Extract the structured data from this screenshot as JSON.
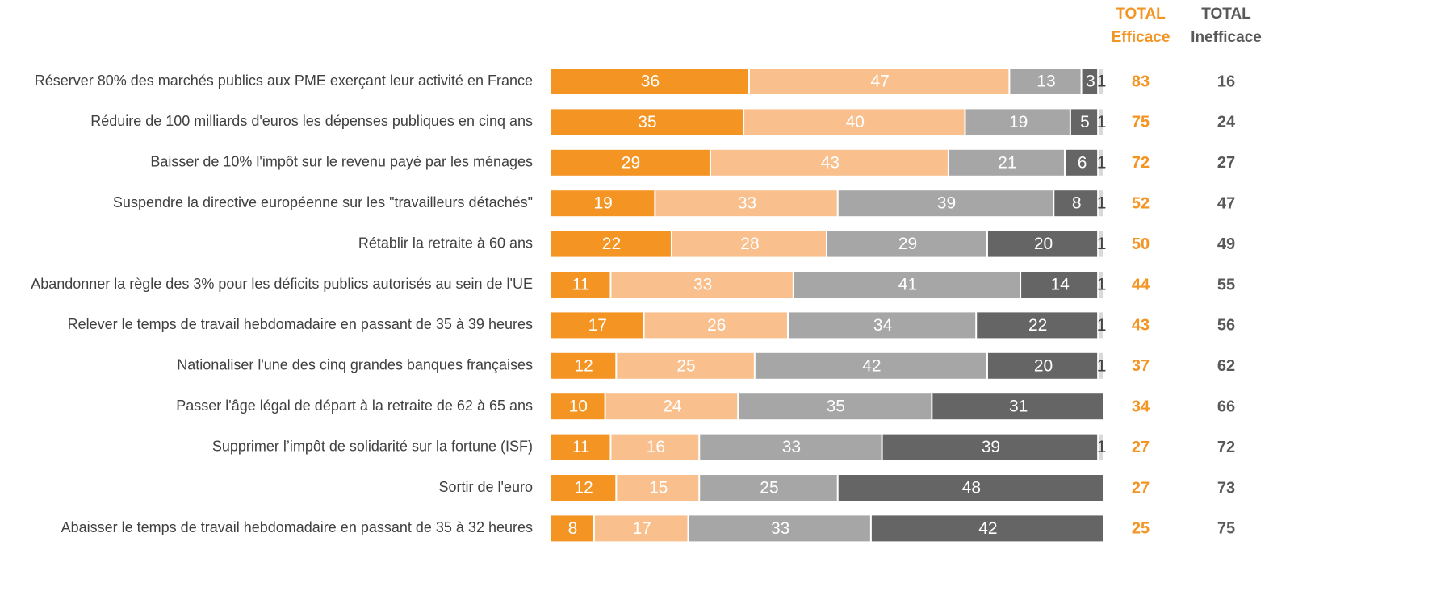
{
  "chart_data": {
    "type": "stacked_bar_horizontal",
    "categories": [
      "Réserver 80% des marchés publics aux PME exerçant leur activité en France",
      "Réduire de 100 milliards d'euros les dépenses publiques en cinq ans",
      "Baisser de 10% l'impôt sur le revenu payé par les ménages",
      "Suspendre la directive européenne sur les \"travailleurs détachés\"",
      "Rétablir la retraite à 60 ans",
      "Abandonner la règle des 3% pour les déficits publics autorisés au sein de l'UE",
      "Relever le temps de travail hebdomadaire en passant de 35 à 39 heures",
      "Nationaliser l'une des cinq grandes banques françaises",
      "Passer l'âge légal de départ à la retraite de 62 à 65 ans",
      "Supprimer l’impôt de solidarité sur la fortune (ISF)",
      "Sortir de l'euro",
      "Abaisser le temps de travail hebdomadaire en passant de 35 à 32 heures"
    ],
    "xlim": [
      0,
      100
    ],
    "series": [
      {
        "color": "#f39423",
        "label_color": "#ffffff",
        "values": [
          36,
          35,
          29,
          19,
          22,
          11,
          17,
          12,
          10,
          11,
          12,
          8
        ]
      },
      {
        "color": "#f9c08e",
        "label_color": "#ffffff",
        "values": [
          47,
          40,
          43,
          33,
          28,
          33,
          26,
          25,
          24,
          16,
          15,
          17
        ]
      },
      {
        "color": "#a6a6a6",
        "label_color": "#ffffff",
        "values": [
          13,
          19,
          21,
          39,
          29,
          41,
          34,
          42,
          35,
          33,
          25,
          33
        ]
      },
      {
        "color": "#656565",
        "label_color": "#ffffff",
        "values": [
          3,
          5,
          6,
          8,
          20,
          14,
          22,
          20,
          31,
          39,
          48,
          42
        ]
      },
      {
        "color": "#d9d9d9",
        "label_color": "#404040",
        "values": [
          1,
          1,
          1,
          1,
          1,
          1,
          1,
          1,
          null,
          1,
          null,
          null
        ]
      }
    ],
    "totals": [
      {
        "header": [
          "TOTAL",
          "Efficace"
        ],
        "color": "#f39423",
        "values": [
          83,
          75,
          72,
          52,
          50,
          44,
          43,
          37,
          34,
          27,
          27,
          25
        ]
      },
      {
        "header": [
          "TOTAL",
          "Inefficace"
        ],
        "color": "#595959",
        "values": [
          16,
          24,
          27,
          47,
          49,
          55,
          56,
          62,
          66,
          72,
          73,
          75
        ]
      }
    ]
  }
}
